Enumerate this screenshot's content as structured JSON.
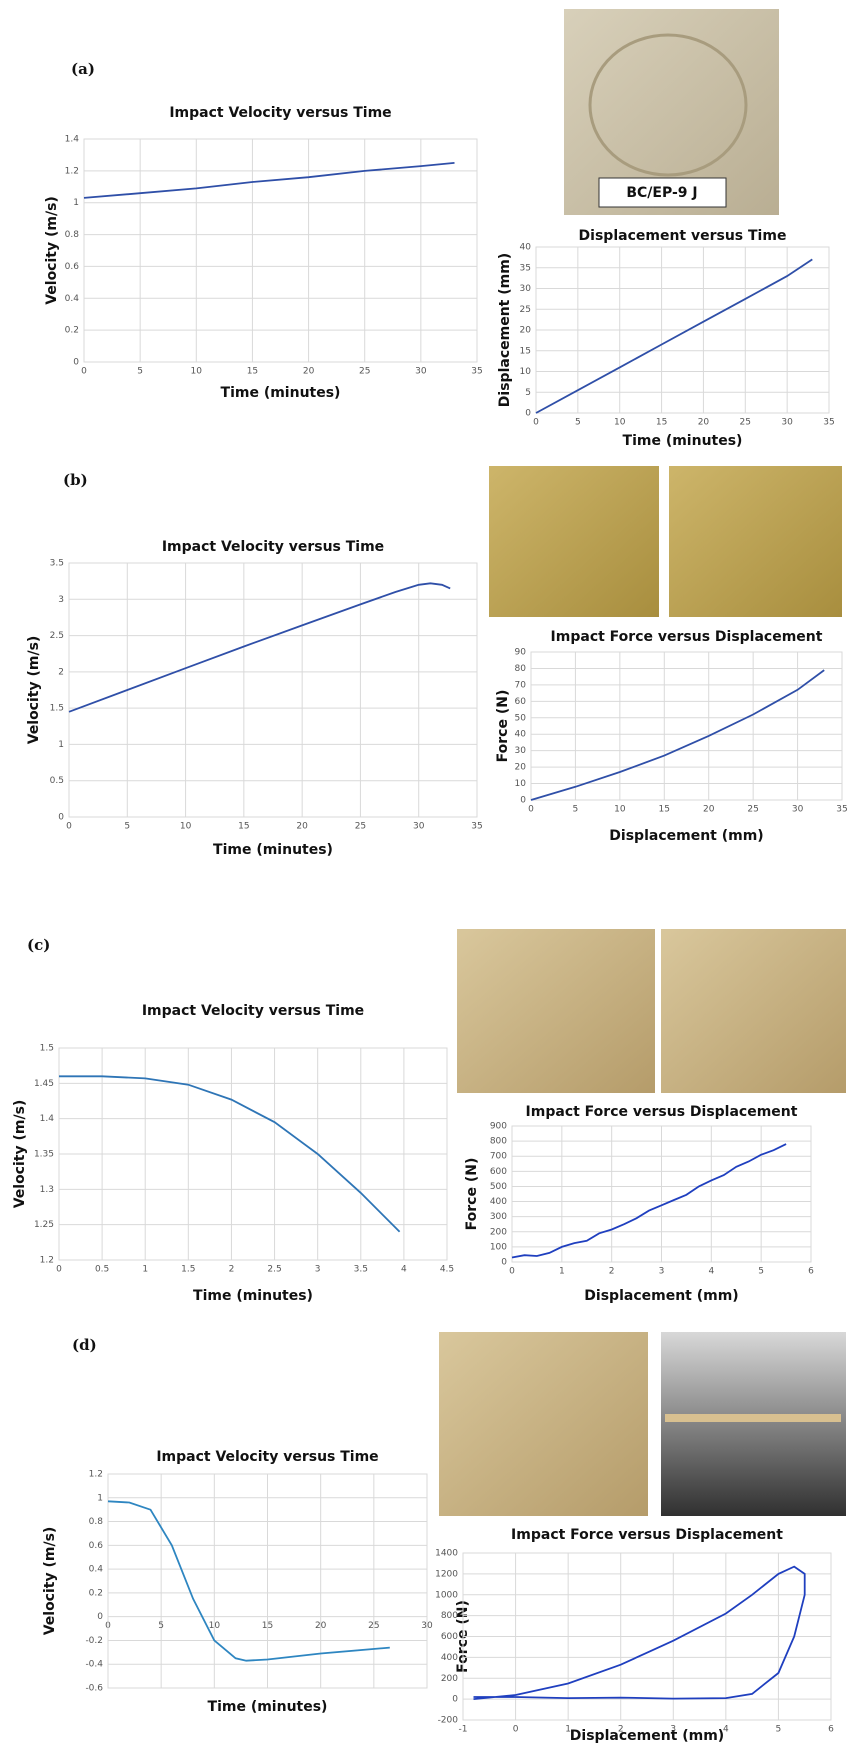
{
  "panels": [
    "(a)",
    "(b)",
    "(c)",
    "(d)"
  ],
  "photo_labels": [
    "BC/EP-9 J"
  ],
  "chart_data": [
    {
      "type": "line",
      "title": "Impact Velocity versus Time",
      "x_label": "Time (minutes)",
      "y_label": "Velocity (m/s)",
      "color": "#2f4fa8",
      "x": [
        0,
        5,
        10,
        15,
        20,
        25,
        30,
        33
      ],
      "values": [
        1.03,
        1.06,
        1.09,
        1.13,
        1.16,
        1.2,
        1.23,
        1.25
      ],
      "xlim": [
        0,
        35
      ],
      "xticks": [
        0,
        5,
        10,
        15,
        20,
        25,
        30,
        35
      ],
      "ylim": [
        0,
        1.4
      ],
      "yticks": [
        0,
        0.2,
        0.4,
        0.6,
        0.8,
        1,
        1.2,
        1.4
      ],
      "grid": true
    },
    {
      "type": "line",
      "title": "Displacement versus Time",
      "x_label": "Time (minutes)",
      "y_label": "Displacement (mm)",
      "color": "#2f4fa8",
      "x": [
        0,
        5,
        10,
        15,
        20,
        25,
        30,
        33
      ],
      "values": [
        0,
        5.5,
        11,
        16.5,
        22,
        27.5,
        33,
        37
      ],
      "xlim": [
        0,
        35
      ],
      "xticks": [
        0,
        5,
        10,
        15,
        20,
        25,
        30,
        35
      ],
      "ylim": [
        0,
        40
      ],
      "yticks": [
        0,
        5,
        10,
        15,
        20,
        25,
        30,
        35,
        40
      ],
      "grid": true
    },
    {
      "type": "line",
      "title": "Impact Velocity versus Time",
      "x_label": "Time (minutes)",
      "y_label": "Velocity (m/s)",
      "color": "#2f4fa8",
      "x": [
        0,
        5,
        10,
        15,
        20,
        25,
        28,
        30,
        31,
        32,
        32.7
      ],
      "values": [
        1.45,
        1.75,
        2.05,
        2.35,
        2.64,
        2.93,
        3.1,
        3.2,
        3.22,
        3.2,
        3.15
      ],
      "xlim": [
        0,
        35
      ],
      "xticks": [
        0,
        5,
        10,
        15,
        20,
        25,
        30,
        35
      ],
      "ylim": [
        0,
        3.5
      ],
      "yticks": [
        0,
        0.5,
        1,
        1.5,
        2,
        2.5,
        3,
        3.5
      ],
      "grid": true
    },
    {
      "type": "line",
      "title": "Impact Force versus Displacement",
      "x_label": "Displacement (mm)",
      "y_label": "Force (N)",
      "color": "#2f4fa8",
      "x": [
        0,
        5,
        10,
        15,
        20,
        25,
        30,
        33
      ],
      "values": [
        0,
        8,
        17,
        27,
        39,
        52,
        67,
        79
      ],
      "xlim": [
        0,
        35
      ],
      "xticks": [
        0,
        5,
        10,
        15,
        20,
        25,
        30,
        35
      ],
      "ylim": [
        0,
        90
      ],
      "yticks": [
        0,
        10,
        20,
        30,
        40,
        50,
        60,
        70,
        80,
        90
      ],
      "grid": true
    },
    {
      "type": "line",
      "title": "Impact Velocity versus Time",
      "x_label": "Time (minutes)",
      "y_label": "Velocity (m/s)",
      "color": "#2e75b6",
      "x": [
        0,
        0.5,
        1,
        1.5,
        2,
        2.5,
        3,
        3.5,
        3.95
      ],
      "values": [
        1.46,
        1.46,
        1.457,
        1.448,
        1.427,
        1.395,
        1.35,
        1.295,
        1.24
      ],
      "xlim": [
        0,
        4.5
      ],
      "xticks": [
        0,
        0.5,
        1,
        1.5,
        2,
        2.5,
        3,
        3.5,
        4,
        4.5
      ],
      "ylim": [
        1.2,
        1.5
      ],
      "yticks": [
        1.2,
        1.25,
        1.3,
        1.35,
        1.4,
        1.45,
        1.5
      ],
      "grid": true
    },
    {
      "type": "line",
      "title": "Impact Force versus Displacement",
      "x_label": "Displacement (mm)",
      "y_label": "Force (N)",
      "color": "#1f3fbf",
      "x": [
        0,
        0.25,
        0.5,
        0.75,
        1,
        1.25,
        1.5,
        1.75,
        2,
        2.25,
        2.5,
        2.75,
        3,
        3.25,
        3.5,
        3.75,
        4,
        4.25,
        4.5,
        4.75,
        5,
        5.25,
        5.5
      ],
      "values": [
        30,
        45,
        40,
        60,
        100,
        125,
        140,
        190,
        215,
        250,
        290,
        340,
        375,
        410,
        445,
        500,
        540,
        575,
        630,
        665,
        710,
        740,
        780
      ],
      "xlim": [
        0,
        6
      ],
      "xticks": [
        0,
        1,
        2,
        3,
        4,
        5,
        6
      ],
      "ylim": [
        0,
        900
      ],
      "yticks": [
        0,
        100,
        200,
        300,
        400,
        500,
        600,
        700,
        800,
        900
      ],
      "grid": true
    },
    {
      "type": "line",
      "title": "Impact Velocity versus Time",
      "x_label": "Time (minutes)",
      "y_label": "Velocity (m/s)",
      "color": "#2e86c1",
      "x": [
        0,
        2,
        4,
        6,
        8,
        10,
        12,
        13,
        15,
        20,
        26.5
      ],
      "values": [
        0.97,
        0.96,
        0.9,
        0.6,
        0.15,
        -0.2,
        -0.35,
        -0.37,
        -0.36,
        -0.31,
        -0.26
      ],
      "xlim": [
        0,
        30
      ],
      "xticks": [
        0,
        5,
        10,
        15,
        20,
        25,
        30
      ],
      "ylim": [
        -0.6,
        1.2
      ],
      "yticks": [
        -0.6,
        -0.4,
        -0.2,
        0,
        0.2,
        0.4,
        0.6,
        0.8,
        1,
        1.2
      ],
      "grid": true,
      "x_labels_at_zero": true
    },
    {
      "type": "line",
      "title": "Impact Force versus Displacement",
      "x_label": "Displacement (mm)",
      "y_label": "Force (N)",
      "color": "#1f3fbf",
      "x": [
        -0.8,
        0,
        1,
        2,
        3,
        4,
        4.5,
        5,
        5.3,
        5.5,
        5.5,
        5.3,
        5,
        4.5,
        4,
        3,
        2,
        1,
        0,
        -0.8
      ],
      "values": [
        20,
        20,
        10,
        15,
        5,
        10,
        50,
        250,
        600,
        1000,
        1200,
        1270,
        1200,
        1000,
        820,
        560,
        330,
        150,
        40,
        0
      ],
      "xlim": [
        -1,
        6
      ],
      "xticks": [
        -1,
        0,
        1,
        2,
        3,
        4,
        5,
        6
      ],
      "ylim": [
        -200,
        1400
      ],
      "yticks": [
        -200,
        0,
        200,
        400,
        600,
        800,
        1000,
        1200,
        1400
      ],
      "grid": true
    }
  ]
}
